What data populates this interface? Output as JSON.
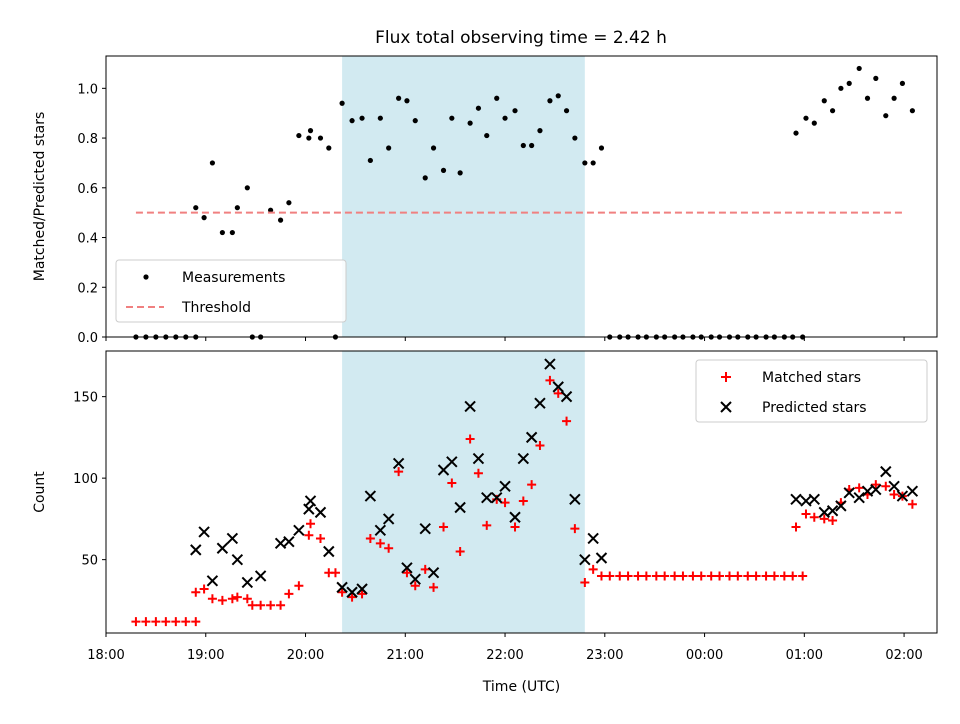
{
  "title": "Flux total observing time = 2.42 h",
  "colors": {
    "measurement": "#000000",
    "threshold": "#f08080",
    "matched": "#ff0000",
    "predicted": "#000000",
    "shade": "#add8e6"
  },
  "chart_data": [
    {
      "type": "scatter",
      "panel": "top",
      "ylabel": "Matched/Predicted stars",
      "xlabel": "",
      "xlim": [
        18.0,
        2.33
      ],
      "ylim": [
        0.0,
        1.13
      ],
      "yticks": [
        "0.0",
        "0.2",
        "0.4",
        "0.6",
        "0.8",
        "1.0"
      ],
      "xticks_labels_visible": false,
      "shaded_region": {
        "x_start": "20:22",
        "x_end": "22:48"
      },
      "legend": {
        "position": "lower-left",
        "entries": [
          "Measurements",
          "Threshold"
        ]
      },
      "series": [
        {
          "name": "Measurements",
          "marker": "dot",
          "points": [
            [
              "18:18",
              0
            ],
            [
              "18:24",
              0
            ],
            [
              "18:30",
              0
            ],
            [
              "18:36",
              0
            ],
            [
              "18:42",
              0
            ],
            [
              "18:48",
              0
            ],
            [
              "18:54",
              0
            ],
            [
              "18:54",
              0.52
            ],
            [
              "18:59",
              0.48
            ],
            [
              "19:04",
              0.7
            ],
            [
              "19:10",
              0.42
            ],
            [
              "19:16",
              0.42
            ],
            [
              "19:19",
              0.52
            ],
            [
              "19:25",
              0.6
            ],
            [
              "19:28",
              0
            ],
            [
              "19:33",
              0
            ],
            [
              "19:39",
              0.51
            ],
            [
              "19:45",
              0.47
            ],
            [
              "19:50",
              0.54
            ],
            [
              "19:56",
              0.81
            ],
            [
              "20:02",
              0.8
            ],
            [
              "20:03",
              0.83
            ],
            [
              "20:09",
              0.8
            ],
            [
              "20:14",
              0.76
            ],
            [
              "20:18",
              0
            ],
            [
              "20:22",
              0.94
            ],
            [
              "20:28",
              0.87
            ],
            [
              "20:34",
              0.88
            ],
            [
              "20:39",
              0.71
            ],
            [
              "20:45",
              0.88
            ],
            [
              "20:50",
              0.76
            ],
            [
              "20:56",
              0.96
            ],
            [
              "21:01",
              0.95
            ],
            [
              "21:06",
              0.87
            ],
            [
              "21:12",
              0.64
            ],
            [
              "21:17",
              0.76
            ],
            [
              "21:23",
              0.67
            ],
            [
              "21:28",
              0.88
            ],
            [
              "21:33",
              0.66
            ],
            [
              "21:39",
              0.86
            ],
            [
              "21:44",
              0.92
            ],
            [
              "21:49",
              0.81
            ],
            [
              "21:55",
              0.96
            ],
            [
              "22:00",
              0.88
            ],
            [
              "22:06",
              0.91
            ],
            [
              "22:11",
              0.77
            ],
            [
              "22:16",
              0.77
            ],
            [
              "22:21",
              0.83
            ],
            [
              "22:27",
              0.95
            ],
            [
              "22:32",
              0.97
            ],
            [
              "22:37",
              0.91
            ],
            [
              "22:42",
              0.8
            ],
            [
              "22:48",
              0.7
            ],
            [
              "22:53",
              0.7
            ],
            [
              "22:58",
              0.76
            ],
            [
              "23:03",
              0
            ],
            [
              "23:09",
              0
            ],
            [
              "23:14",
              0
            ],
            [
              "23:20",
              0
            ],
            [
              "23:25",
              0
            ],
            [
              "23:31",
              0
            ],
            [
              "23:36",
              0
            ],
            [
              "23:42",
              0
            ],
            [
              "23:47",
              0
            ],
            [
              "23:53",
              0
            ],
            [
              "23:58",
              0
            ],
            [
              "00:04",
              0
            ],
            [
              "00:09",
              0
            ],
            [
              "00:15",
              0
            ],
            [
              "00:20",
              0
            ],
            [
              "00:26",
              0
            ],
            [
              "00:31",
              0
            ],
            [
              "00:37",
              0
            ],
            [
              "00:42",
              0
            ],
            [
              "00:48",
              0
            ],
            [
              "00:53",
              0
            ],
            [
              "00:59",
              0
            ],
            [
              "00:55",
              0.82
            ],
            [
              "01:01",
              0.88
            ],
            [
              "01:06",
              0.86
            ],
            [
              "01:12",
              0.95
            ],
            [
              "01:17",
              0.91
            ],
            [
              "01:22",
              1.0
            ],
            [
              "01:27",
              1.02
            ],
            [
              "01:33",
              1.08
            ],
            [
              "01:38",
              0.96
            ],
            [
              "01:43",
              1.04
            ],
            [
              "01:49",
              0.89
            ],
            [
              "01:54",
              0.96
            ],
            [
              "01:59",
              1.02
            ],
            [
              "02:05",
              0.91
            ]
          ]
        },
        {
          "name": "Threshold",
          "style": "dashed",
          "points": [
            [
              "18:18",
              0.5
            ],
            [
              "02:00",
              0.5
            ]
          ]
        }
      ]
    },
    {
      "type": "scatter",
      "panel": "bottom",
      "ylabel": "Count",
      "xlabel": "Time (UTC)",
      "xlim": [
        18.0,
        2.33
      ],
      "ylim": [
        5,
        178
      ],
      "yticks": [
        "50",
        "100",
        "150"
      ],
      "xticks": [
        "18:00",
        "19:00",
        "20:00",
        "21:00",
        "22:00",
        "23:00",
        "00:00",
        "01:00",
        "02:00"
      ],
      "shaded_region": {
        "x_start": "20:22",
        "x_end": "22:48"
      },
      "legend": {
        "position": "top-right",
        "entries": [
          "Matched stars",
          "Predicted stars"
        ]
      },
      "series": [
        {
          "name": "Matched stars",
          "marker": "plus",
          "points": [
            [
              "18:18",
              12
            ],
            [
              "18:24",
              12
            ],
            [
              "18:30",
              12
            ],
            [
              "18:36",
              12
            ],
            [
              "18:42",
              12
            ],
            [
              "18:48",
              12
            ],
            [
              "18:54",
              12
            ],
            [
              "18:54",
              30
            ],
            [
              "18:59",
              32
            ],
            [
              "19:04",
              26
            ],
            [
              "19:10",
              25
            ],
            [
              "19:16",
              26
            ],
            [
              "19:19",
              27
            ],
            [
              "19:25",
              26
            ],
            [
              "19:28",
              22
            ],
            [
              "19:33",
              22
            ],
            [
              "19:39",
              22
            ],
            [
              "19:45",
              22
            ],
            [
              "19:50",
              29
            ],
            [
              "19:56",
              34
            ],
            [
              "20:02",
              65
            ],
            [
              "20:03",
              72
            ],
            [
              "20:09",
              63
            ],
            [
              "20:14",
              42
            ],
            [
              "20:18",
              42
            ],
            [
              "20:22",
              30
            ],
            [
              "20:28",
              27
            ],
            [
              "20:34",
              29
            ],
            [
              "20:39",
              63
            ],
            [
              "20:45",
              60
            ],
            [
              "20:50",
              57
            ],
            [
              "20:56",
              104
            ],
            [
              "21:01",
              42
            ],
            [
              "21:06",
              34
            ],
            [
              "21:12",
              44
            ],
            [
              "21:17",
              33
            ],
            [
              "21:23",
              70
            ],
            [
              "21:28",
              97
            ],
            [
              "21:33",
              55
            ],
            [
              "21:39",
              124
            ],
            [
              "21:44",
              103
            ],
            [
              "21:49",
              71
            ],
            [
              "21:55",
              87
            ],
            [
              "22:00",
              85
            ],
            [
              "22:06",
              70
            ],
            [
              "22:11",
              86
            ],
            [
              "22:16",
              96
            ],
            [
              "22:21",
              120
            ],
            [
              "22:27",
              160
            ],
            [
              "22:32",
              152
            ],
            [
              "22:37",
              135
            ],
            [
              "22:42",
              69
            ],
            [
              "22:48",
              36
            ],
            [
              "22:53",
              44
            ],
            [
              "22:58",
              40
            ],
            [
              "23:03",
              40
            ],
            [
              "23:09",
              40
            ],
            [
              "23:14",
              40
            ],
            [
              "23:20",
              40
            ],
            [
              "23:25",
              40
            ],
            [
              "23:31",
              40
            ],
            [
              "23:36",
              40
            ],
            [
              "23:42",
              40
            ],
            [
              "23:47",
              40
            ],
            [
              "23:53",
              40
            ],
            [
              "23:58",
              40
            ],
            [
              "00:04",
              40
            ],
            [
              "00:09",
              40
            ],
            [
              "00:15",
              40
            ],
            [
              "00:20",
              40
            ],
            [
              "00:26",
              40
            ],
            [
              "00:31",
              40
            ],
            [
              "00:37",
              40
            ],
            [
              "00:42",
              40
            ],
            [
              "00:48",
              40
            ],
            [
              "00:53",
              40
            ],
            [
              "00:59",
              40
            ],
            [
              "00:55",
              70
            ],
            [
              "01:01",
              78
            ],
            [
              "01:06",
              76
            ],
            [
              "01:12",
              75
            ],
            [
              "01:17",
              74
            ],
            [
              "01:22",
              85
            ],
            [
              "01:27",
              93
            ],
            [
              "01:33",
              94
            ],
            [
              "01:38",
              90
            ],
            [
              "01:43",
              96
            ],
            [
              "01:49",
              95
            ],
            [
              "01:54",
              90
            ],
            [
              "01:59",
              89
            ],
            [
              "02:05",
              84
            ]
          ]
        },
        {
          "name": "Predicted stars",
          "marker": "x",
          "points": [
            [
              "18:54",
              56
            ],
            [
              "18:59",
              67
            ],
            [
              "19:04",
              37
            ],
            [
              "19:10",
              57
            ],
            [
              "19:16",
              63
            ],
            [
              "19:19",
              50
            ],
            [
              "19:25",
              36
            ],
            [
              "19:33",
              40
            ],
            [
              "19:45",
              60
            ],
            [
              "19:50",
              61
            ],
            [
              "19:56",
              68
            ],
            [
              "20:02",
              81
            ],
            [
              "20:03",
              86
            ],
            [
              "20:09",
              79
            ],
            [
              "20:14",
              55
            ],
            [
              "20:22",
              33
            ],
            [
              "20:28",
              30
            ],
            [
              "20:34",
              32
            ],
            [
              "20:39",
              89
            ],
            [
              "20:45",
              68
            ],
            [
              "20:50",
              75
            ],
            [
              "20:56",
              109
            ],
            [
              "21:01",
              45
            ],
            [
              "21:06",
              38
            ],
            [
              "21:12",
              69
            ],
            [
              "21:17",
              42
            ],
            [
              "21:23",
              105
            ],
            [
              "21:28",
              110
            ],
            [
              "21:33",
              82
            ],
            [
              "21:39",
              144
            ],
            [
              "21:44",
              112
            ],
            [
              "21:49",
              88
            ],
            [
              "21:55",
              88
            ],
            [
              "22:00",
              95
            ],
            [
              "22:06",
              76
            ],
            [
              "22:11",
              112
            ],
            [
              "22:16",
              125
            ],
            [
              "22:21",
              146
            ],
            [
              "22:27",
              170
            ],
            [
              "22:32",
              156
            ],
            [
              "22:37",
              150
            ],
            [
              "22:42",
              87
            ],
            [
              "22:48",
              50
            ],
            [
              "22:53",
              63
            ],
            [
              "22:58",
              51
            ],
            [
              "00:55",
              87
            ],
            [
              "01:01",
              86
            ],
            [
              "01:06",
              87
            ],
            [
              "01:12",
              79
            ],
            [
              "01:17",
              80
            ],
            [
              "01:22",
              83
            ],
            [
              "01:27",
              91
            ],
            [
              "01:33",
              88
            ],
            [
              "01:38",
              92
            ],
            [
              "01:43",
              93
            ],
            [
              "01:49",
              104
            ],
            [
              "01:54",
              95
            ],
            [
              "01:59",
              89
            ],
            [
              "02:05",
              92
            ]
          ]
        }
      ]
    }
  ]
}
